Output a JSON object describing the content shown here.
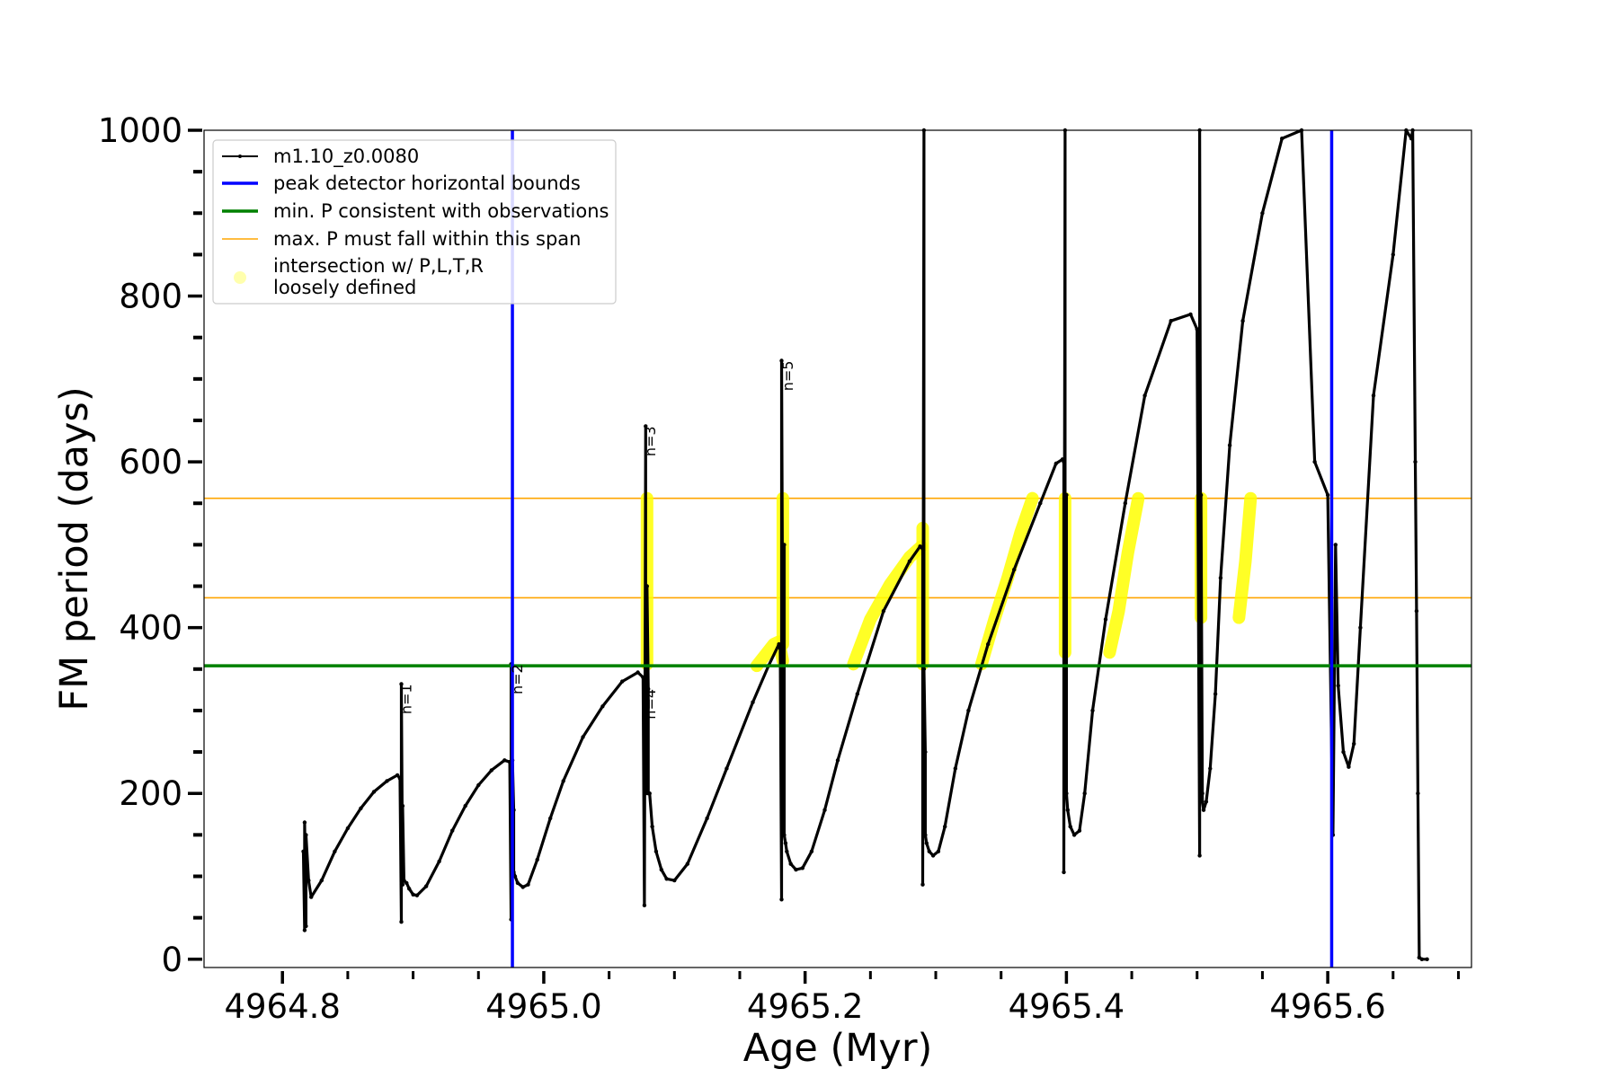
{
  "chart_data": {
    "type": "line",
    "title": "",
    "xlabel": "Age (Myr)",
    "ylabel": "FM period (days)",
    "xlim": [
      4964.74,
      4965.71
    ],
    "ylim": [
      -10,
      1000
    ],
    "x_ticks": [
      4964.8,
      4965.0,
      4965.2,
      4965.4,
      4965.6
    ],
    "x_tick_labels": [
      "4964.8",
      "4965.0",
      "4965.2",
      "4965.4",
      "4965.6"
    ],
    "y_ticks": [
      0,
      200,
      400,
      600,
      800,
      1000
    ],
    "y_tick_labels": [
      "0",
      "200",
      "400",
      "600",
      "800",
      "1000"
    ],
    "colors": {
      "model": "#000000",
      "bounds": "#0000ff",
      "min_period": "#008000",
      "max_span": "#ffa500",
      "intersection": "#ffff00"
    },
    "legend": {
      "placement": "upper-left",
      "entries": [
        {
          "label": "m1.10_z0.0080",
          "style": "line-marker",
          "color": "#000000"
        },
        {
          "label": "peak detector horizontal bounds",
          "style": "line",
          "color": "#0000ff"
        },
        {
          "label": "min. P consistent with observations",
          "style": "line",
          "color": "#008000"
        },
        {
          "label": "max. P must fall within this span",
          "style": "thin-line",
          "color": "#ffa500"
        },
        {
          "label_lines": [
            "intersection w/ P,L,T,R",
            "loosely defined"
          ],
          "style": "marker",
          "color": "#ffff99"
        }
      ]
    },
    "vertical_lines": [
      4964.976,
      4965.603
    ],
    "min_period": 354,
    "max_period_span": [
      436,
      556
    ],
    "pulse_labels": [
      {
        "text": "n=1",
        "x": 4964.893,
        "y": 332
      },
      {
        "text": "n=2",
        "x": 4964.978,
        "y": 356
      },
      {
        "text": "n=3",
        "x": 4965.08,
        "y": 643
      },
      {
        "text": "n=4",
        "x": 4965.08,
        "y": 326
      },
      {
        "text": "n=5",
        "x": 4965.185,
        "y": 722
      }
    ],
    "series": [
      {
        "name": "m1.10_z0.0080",
        "x": [
          4964.816,
          4964.817,
          4964.817,
          4964.818,
          4964.818,
          4964.82,
          4964.822,
          4964.83,
          4964.84,
          4964.85,
          4964.86,
          4964.87,
          4964.88,
          4964.888,
          4964.89,
          4964.891,
          4964.891,
          4964.892,
          4964.892,
          4964.893,
          4964.893,
          4964.895,
          4964.897,
          4964.9,
          4964.903,
          4964.91,
          4964.92,
          4964.93,
          4964.94,
          4964.95,
          4964.96,
          4964.97,
          4964.974,
          4964.975,
          4964.975,
          4964.976,
          4964.976,
          4964.977,
          4964.977,
          4964.978,
          4964.98,
          4964.984,
          4964.988,
          4964.995,
          4965.005,
          4965.015,
          4965.03,
          4965.045,
          4965.06,
          4965.072,
          4965.076,
          4965.077,
          4965.078,
          4965.078,
          4965.079,
          4965.079,
          4965.08,
          4965.08,
          4965.081,
          4965.083,
          4965.086,
          4965.09,
          4965.094,
          4965.1,
          4965.11,
          4965.125,
          4965.14,
          4965.16,
          4965.172,
          4965.18,
          4965.181,
          4965.182,
          4965.182,
          4965.183,
          4965.183,
          4965.184,
          4965.184,
          4965.185,
          4965.186,
          4965.189,
          4965.193,
          4965.198,
          4965.205,
          4965.215,
          4965.225,
          4965.24,
          4965.26,
          4965.28,
          4965.288,
          4965.29,
          4965.29,
          4965.291,
          4965.291,
          4965.292,
          4965.292,
          4965.293,
          4965.295,
          4965.298,
          4965.302,
          4965.307,
          4965.315,
          4965.325,
          4965.34,
          4965.36,
          4965.38,
          4965.392,
          4965.397,
          4965.398,
          4965.398,
          4965.399,
          4965.399,
          4965.4,
          4965.4,
          4965.401,
          4965.403,
          4965.406,
          4965.41,
          4965.414,
          4965.42,
          4965.43,
          4965.445,
          4965.46,
          4965.48,
          4965.495,
          4965.5,
          4965.502,
          4965.502,
          4965.503,
          4965.503,
          4965.504,
          4965.504,
          4965.505,
          4965.507,
          4965.51,
          4965.514,
          4965.518,
          4965.525,
          4965.535,
          4965.55,
          4965.565,
          4965.58,
          4965.59,
          4965.6,
          4965.604,
          4965.606,
          4965.608,
          4965.612,
          4965.616,
          4965.62,
          4965.625,
          4965.635,
          4965.65,
          4965.66,
          4965.664,
          4965.665,
          4965.667,
          4965.668,
          4965.669,
          4965.67,
          4965.67,
          4965.672,
          4965.676
        ],
        "y": [
          130,
          35,
          165,
          40,
          150,
          95,
          75,
          95,
          130,
          158,
          182,
          202,
          215,
          222,
          218,
          45,
          332,
          90,
          185,
          95,
          95,
          92,
          85,
          78,
          77,
          88,
          118,
          155,
          185,
          210,
          228,
          240,
          238,
          48,
          356,
          100,
          240,
          180,
          105,
          100,
          92,
          87,
          90,
          120,
          170,
          215,
          268,
          305,
          335,
          346,
          340,
          65,
          643,
          200,
          315,
          450,
          326,
          200,
          200,
          160,
          130,
          108,
          97,
          95,
          115,
          170,
          230,
          310,
          354,
          380,
          375,
          72,
          722,
          350,
          200,
          500,
          150,
          140,
          130,
          115,
          108,
          110,
          130,
          180,
          240,
          320,
          420,
          480,
          498,
          495,
          90,
          1000,
          350,
          250,
          150,
          140,
          130,
          125,
          130,
          160,
          230,
          300,
          380,
          470,
          550,
          598,
          603,
          600,
          105,
          1000,
          300,
          560,
          200,
          180,
          160,
          150,
          155,
          200,
          300,
          410,
          550,
          680,
          770,
          778,
          760,
          125,
          1000,
          300,
          560,
          200,
          190,
          180,
          190,
          230,
          320,
          460,
          620,
          770,
          900,
          990,
          1000,
          600,
          560,
          150,
          500,
          330,
          250,
          232,
          260,
          400,
          680,
          850,
          1000,
          990,
          1000,
          600,
          420,
          200,
          2,
          2,
          0,
          0
        ]
      },
      {
        "name": "intersection w/ P,L,T,R loosely defined",
        "segments": [
          {
            "x": [
              4965.079,
              4965.079
            ],
            "y": [
              356,
              556
            ]
          },
          {
            "x": [
              4965.163,
              4965.17,
              4965.176,
              4965.18,
              4965.183
            ],
            "y": [
              354,
              368,
              380,
              383,
              360
            ]
          },
          {
            "x": [
              4965.183,
              4965.183
            ],
            "y": [
              380,
              556
            ]
          },
          {
            "x": [
              4965.237,
              4965.25,
              4965.265,
              4965.28,
              4965.289
            ],
            "y": [
              356,
              410,
              452,
              485,
              498
            ]
          },
          {
            "x": [
              4965.29,
              4965.29
            ],
            "y": [
              356,
              520
            ]
          },
          {
            "x": [
              4965.335,
              4965.345,
              4965.355,
              4965.365,
              4965.374
            ],
            "y": [
              356,
              410,
              460,
              515,
              556
            ]
          },
          {
            "x": [
              4965.399,
              4965.399
            ],
            "y": [
              370,
              556
            ]
          },
          {
            "x": [
              4965.433,
              4965.44,
              4965.447,
              4965.455
            ],
            "y": [
              370,
              420,
              490,
              556
            ]
          },
          {
            "x": [
              4965.503,
              4965.503
            ],
            "y": [
              412,
              556
            ]
          },
          {
            "x": [
              4965.532,
              4965.537,
              4965.541
            ],
            "y": [
              412,
              480,
              556
            ]
          }
        ]
      }
    ]
  }
}
